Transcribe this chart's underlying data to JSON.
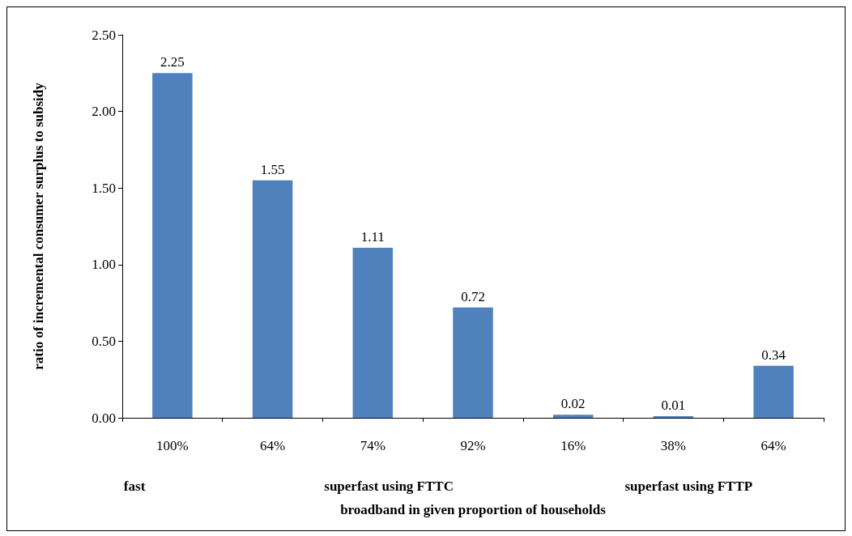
{
  "chart_data": {
    "type": "bar",
    "categories": [
      "100%",
      "64%",
      "74%",
      "92%",
      "16%",
      "38%",
      "64%"
    ],
    "values": [
      2.25,
      1.55,
      1.11,
      0.72,
      0.02,
      0.01,
      0.34
    ],
    "color": "#4f81bd",
    "ylabel": "ratio of incremental consumer surplus to subsidy",
    "xlabel": "broadband in given proportion of households",
    "annotations": [
      "fast",
      "superfast using FTTC",
      "superfast using FTTP"
    ],
    "ylim": [
      0,
      2.5
    ],
    "yticks": [
      {
        "value": 0,
        "label": "0.00"
      },
      {
        "value": 0.5,
        "label": "0.50"
      },
      {
        "value": 1,
        "label": "1.00"
      },
      {
        "value": 1.5,
        "label": "1.50"
      },
      {
        "value": 2,
        "label": "2.00"
      },
      {
        "value": 2.5,
        "label": "2.50"
      }
    ],
    "data_labels": true,
    "grid": false
  }
}
